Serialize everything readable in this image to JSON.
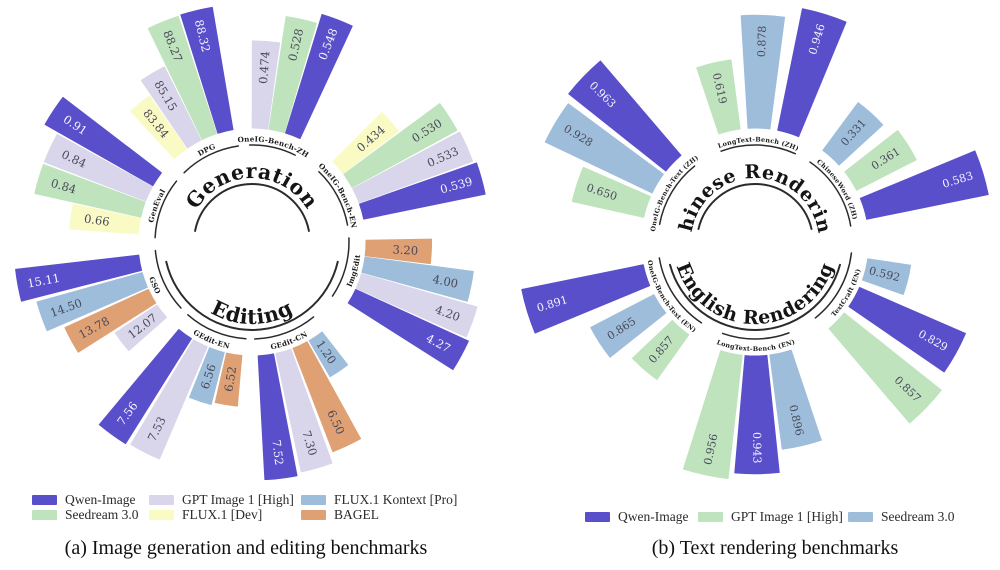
{
  "chart_data": [
    {
      "id": "a",
      "type": "bar",
      "style": "radial-fan",
      "caption": "(a) Image generation and editing benchmarks",
      "legend": [
        {
          "name": "Qwen-Image",
          "color": "#5a4fca"
        },
        {
          "name": "GPT Image 1 [High]",
          "color": "#d9d5ea"
        },
        {
          "name": "FLUX.1 Kontext [Pro]",
          "color": "#9dbddb"
        },
        {
          "name": "Seedream 3.0",
          "color": "#bfe3bd"
        },
        {
          "name": "FLUX.1 [Dev]",
          "color": "#fafac5"
        },
        {
          "name": "BAGEL",
          "color": "#dfa173"
        }
      ],
      "sections": [
        {
          "title": "Generation",
          "half": "top",
          "benchmarks": [
            {
              "label": "GenEval",
              "scale_min": 0.35,
              "bars": [
                {
                  "model": "FLUX.1 [Dev]",
                  "value": 0.66,
                  "display": "0.66"
                },
                {
                  "model": "Seedream 3.0",
                  "value": 0.84,
                  "display": "0.84"
                },
                {
                  "model": "GPT Image 1 [High]",
                  "value": 0.84,
                  "display": "0.84"
                },
                {
                  "model": "Qwen-Image",
                  "value": 0.91,
                  "display": "0.91"
                }
              ]
            },
            {
              "label": "DPG",
              "scale_min": 79,
              "bars": [
                {
                  "model": "FLUX.1 [Dev]",
                  "value": 83.84,
                  "display": "83.84"
                },
                {
                  "model": "GPT Image 1 [High]",
                  "value": 85.15,
                  "display": "85.15"
                },
                {
                  "model": "Seedream 3.0",
                  "value": 88.27,
                  "display": "88.27"
                },
                {
                  "model": "Qwen-Image",
                  "value": 88.32,
                  "display": "88.32"
                }
              ]
            },
            {
              "label": "OneIG-Bench-ZH",
              "scale_min": 0.3,
              "bars": [
                {
                  "model": "GPT Image 1 [High]",
                  "value": 0.474,
                  "display": "0.474"
                },
                {
                  "model": "Seedream 3.0",
                  "value": 0.528,
                  "display": "0.528"
                },
                {
                  "model": "Qwen-Image",
                  "value": 0.548,
                  "display": "0.548"
                }
              ]
            },
            {
              "label": "OneIG-Bench-EN",
              "scale_min": 0.3,
              "bars": [
                {
                  "model": "FLUX.1 [Dev]",
                  "value": 0.434,
                  "display": "0.434"
                },
                {
                  "model": "Seedream 3.0",
                  "value": 0.53,
                  "display": "0.530"
                },
                {
                  "model": "GPT Image 1 [High]",
                  "value": 0.533,
                  "display": "0.533"
                },
                {
                  "model": "Qwen-Image",
                  "value": 0.539,
                  "display": "0.539"
                }
              ]
            }
          ]
        },
        {
          "title": "Editing",
          "half": "bottom",
          "benchmarks": [
            {
              "label": "GSO",
              "scale_min": 10,
              "bars": [
                {
                  "model": "Qwen-Image",
                  "value": 15.11,
                  "display": "15.11"
                },
                {
                  "model": "FLUX.1 Kontext [Pro]",
                  "value": 14.5,
                  "display": "14.50"
                },
                {
                  "model": "BAGEL",
                  "value": 13.78,
                  "display": "13.78"
                },
                {
                  "model": "GPT Image 1 [High]",
                  "value": 12.07,
                  "display": "12.07"
                }
              ]
            },
            {
              "label": "GEdit-EN",
              "scale_min": 5.8,
              "bars": [
                {
                  "model": "Qwen-Image",
                  "value": 7.56,
                  "display": "7.56"
                },
                {
                  "model": "GPT Image 1 [High]",
                  "value": 7.53,
                  "display": "7.53"
                },
                {
                  "model": "FLUX.1 Kontext [Pro]",
                  "value": 6.56,
                  "display": "6.56"
                },
                {
                  "model": "BAGEL",
                  "value": 6.52,
                  "display": "6.52"
                }
              ]
            },
            {
              "label": "GEdit-CN",
              "scale_min": -2,
              "bars": [
                {
                  "model": "Qwen-Image",
                  "value": 7.52,
                  "display": "7.52"
                },
                {
                  "model": "GPT Image 1 [High]",
                  "value": 7.3,
                  "display": "7.30"
                },
                {
                  "model": "BAGEL",
                  "value": 6.5,
                  "display": "6.50"
                },
                {
                  "model": "FLUX.1 Kontext [Pro]",
                  "value": 1.2,
                  "display": "1.20"
                }
              ]
            },
            {
              "label": "ImgEdit",
              "scale_min": 2,
              "bars": [
                {
                  "model": "Qwen-Image",
                  "value": 4.27,
                  "display": "4.27"
                },
                {
                  "model": "GPT Image 1 [High]",
                  "value": 4.2,
                  "display": "4.20"
                },
                {
                  "model": "FLUX.1 Kontext [Pro]",
                  "value": 4.0,
                  "display": "4.00"
                },
                {
                  "model": "BAGEL",
                  "value": 3.2,
                  "display": "3.20"
                }
              ]
            }
          ]
        }
      ]
    },
    {
      "id": "b",
      "type": "bar",
      "style": "radial-fan",
      "caption": "(b) Text rendering benchmarks",
      "legend": [
        {
          "name": "Qwen-Image",
          "color": "#5a4fca"
        },
        {
          "name": "GPT Image 1 [High]",
          "color": "#bfe3bd"
        },
        {
          "name": "Seedream 3.0",
          "color": "#9dbddb"
        }
      ],
      "sections": [
        {
          "title": "Chinese Rendering",
          "half": "top",
          "benchmarks": [
            {
              "label": "OneIG-Bench-Text (ZH)",
              "scale_min": 0.2,
              "bars": [
                {
                  "model": "GPT Image 1 [High]",
                  "value": 0.65,
                  "display": "0.650"
                },
                {
                  "model": "Seedream 3.0",
                  "value": 0.928,
                  "display": "0.928"
                },
                {
                  "model": "Qwen-Image",
                  "value": 0.963,
                  "display": "0.963"
                }
              ]
            },
            {
              "label": "LongText-Bench (ZH)",
              "scale_min": 0.2,
              "bars": [
                {
                  "model": "GPT Image 1 [High]",
                  "value": 0.619,
                  "display": "0.619"
                },
                {
                  "model": "Seedream 3.0",
                  "value": 0.878,
                  "display": "0.878"
                },
                {
                  "model": "Qwen-Image",
                  "value": 0.946,
                  "display": "0.946"
                }
              ]
            },
            {
              "label": "ChineseWord (ZH)",
              "scale_min": 0.1,
              "bars": [
                {
                  "model": "Seedream 3.0",
                  "value": 0.331,
                  "display": "0.331"
                },
                {
                  "model": "GPT Image 1 [High]",
                  "value": 0.361,
                  "display": "0.361"
                },
                {
                  "model": "Qwen-Image",
                  "value": 0.583,
                  "display": "0.583"
                }
              ]
            }
          ]
        },
        {
          "title": "English Rendering",
          "half": "bottom",
          "benchmarks": [
            {
              "label": "OneIG-Bench-Text (EN)",
              "scale_min": 0.83,
              "bars": [
                {
                  "model": "Qwen-Image",
                  "value": 0.891,
                  "display": "0.891"
                },
                {
                  "model": "Seedream 3.0",
                  "value": 0.865,
                  "display": "0.865"
                },
                {
                  "model": "GPT Image 1 [High]",
                  "value": 0.857,
                  "display": "0.857"
                }
              ]
            },
            {
              "label": "LongText-Bench (EN)",
              "scale_min": 0.7,
              "bars": [
                {
                  "model": "GPT Image 1 [High]",
                  "value": 0.956,
                  "display": "0.956"
                },
                {
                  "model": "Qwen-Image",
                  "value": 0.943,
                  "display": "0.943"
                },
                {
                  "model": "Seedream 3.0",
                  "value": 0.896,
                  "display": "0.896"
                }
              ]
            },
            {
              "label": "TextCraft (EN)",
              "scale_min": 0.45,
              "bars": [
                {
                  "model": "GPT Image 1 [High]",
                  "value": 0.857,
                  "display": "0.857"
                },
                {
                  "model": "Qwen-Image",
                  "value": 0.829,
                  "display": "0.829"
                },
                {
                  "model": "Seedream 3.0",
                  "value": 0.592,
                  "display": "0.592"
                }
              ]
            }
          ]
        }
      ]
    }
  ]
}
